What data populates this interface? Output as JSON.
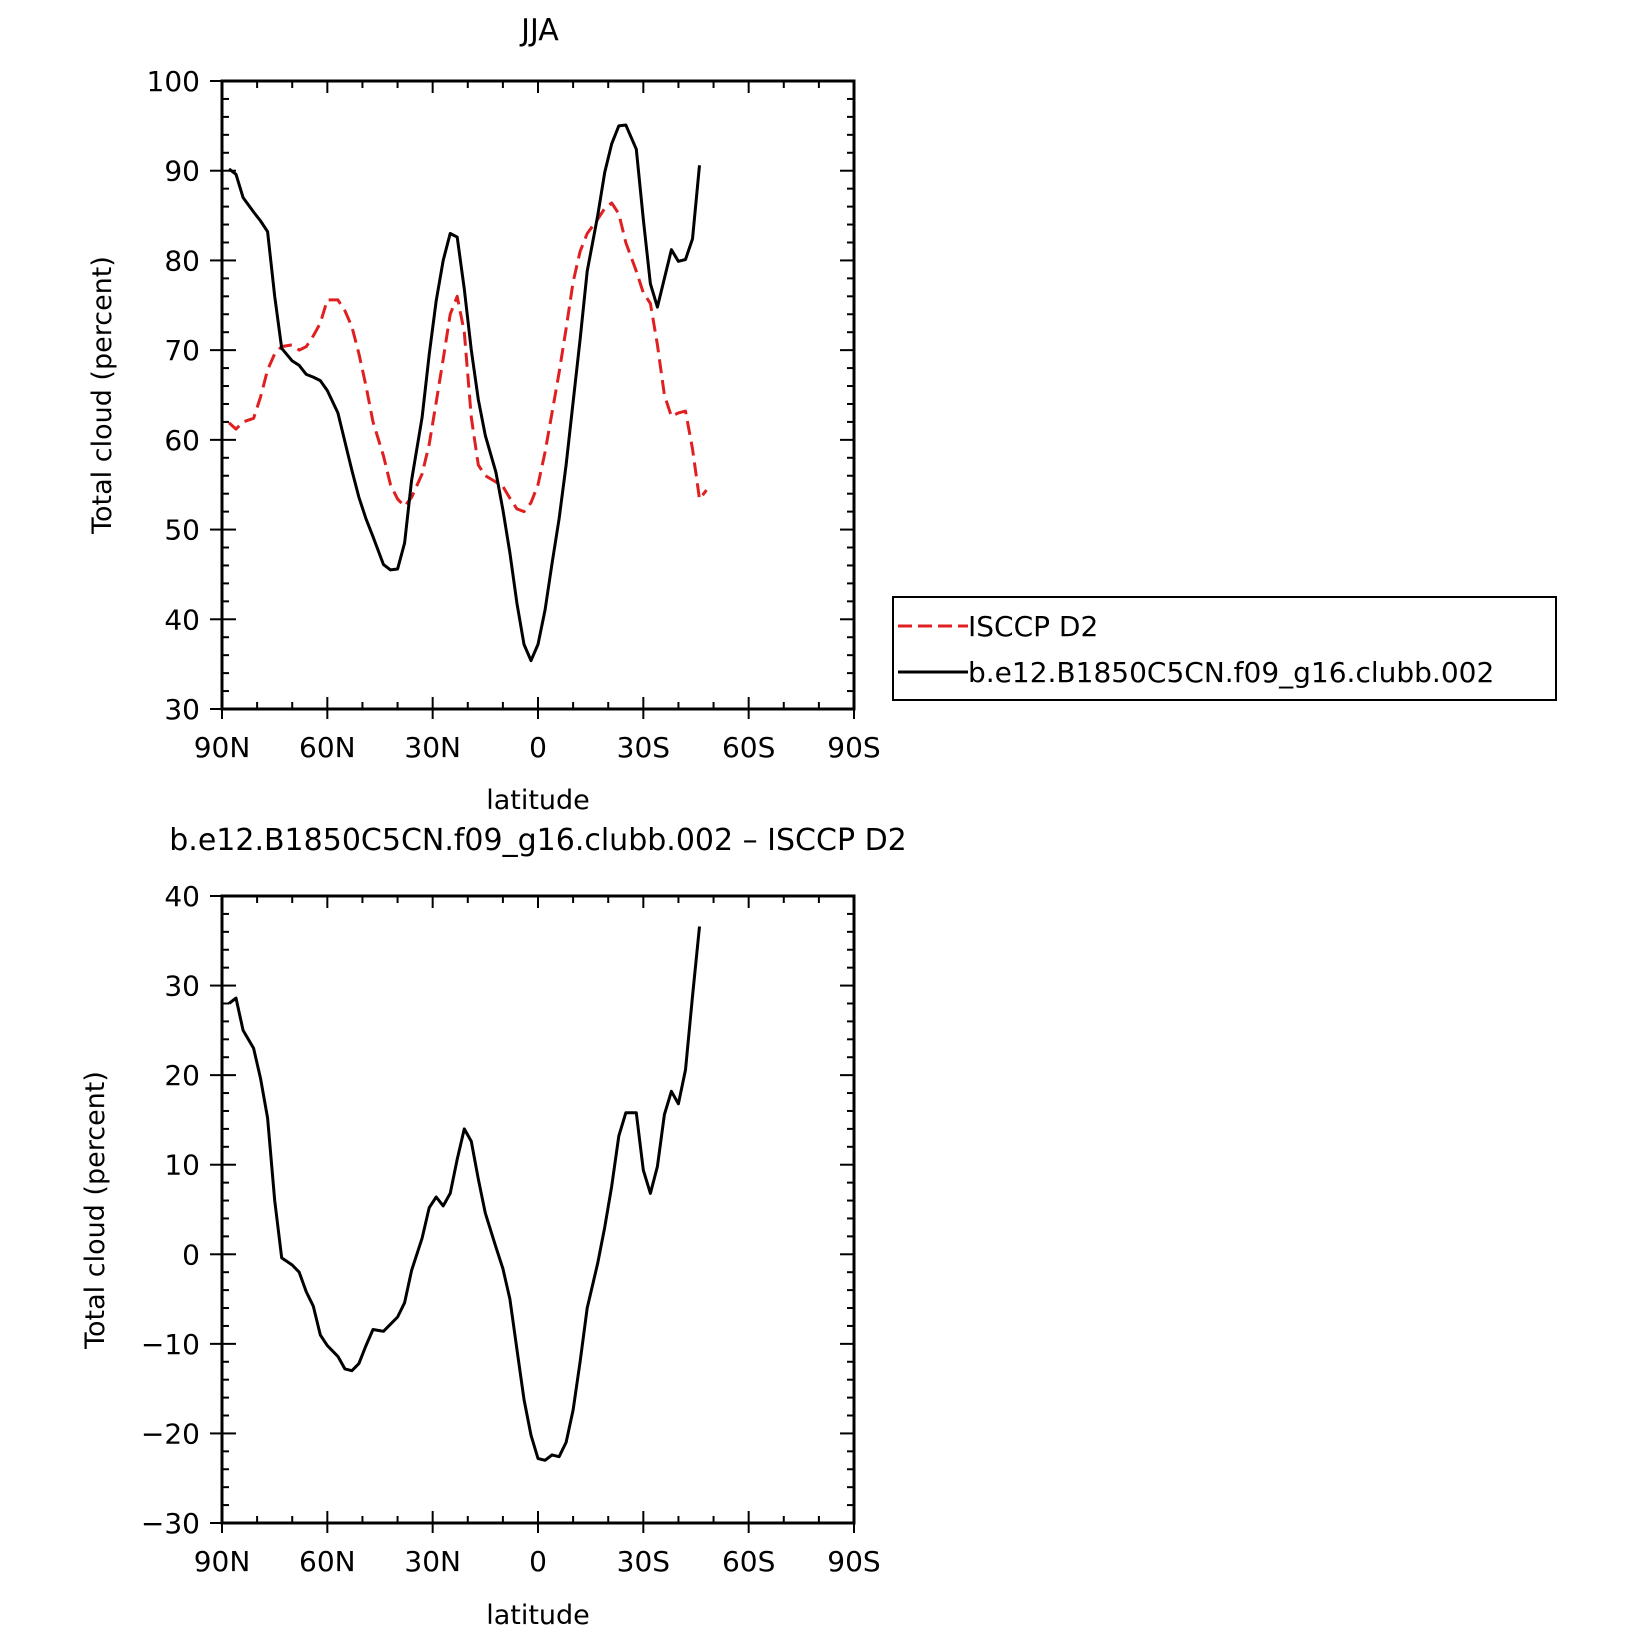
{
  "chart_data": [
    {
      "type": "line",
      "title": "JJA",
      "xlabel": "latitude",
      "ylabel": "Total cloud (percent)",
      "xlim": [
        90,
        -90
      ],
      "ylim": [
        30,
        100
      ],
      "x_ticks": [
        90,
        60,
        30,
        0,
        -30,
        -60,
        -90
      ],
      "x_tick_labels": [
        "90N",
        "60N",
        "30N",
        "0",
        "30S",
        "60S",
        "90S"
      ],
      "y_ticks": [
        30,
        40,
        50,
        60,
        70,
        80,
        90,
        100
      ],
      "y_tick_labels": [
        "30",
        "40",
        "50",
        "60",
        "70",
        "80",
        "90",
        "100"
      ],
      "legend": {
        "placement": "right",
        "entries": [
          "ISCCP D2",
          "b.e12.B1850C5CN.f09_g16.clubb.002"
        ]
      },
      "series": [
        {
          "name": "ISCCP D2",
          "color": "#e02020",
          "style": "dashed",
          "points": [
            [
              88,
              61.9
            ],
            [
              86,
              61.2
            ],
            [
              84,
              62.0
            ],
            [
              81,
              62.4
            ],
            [
              79,
              64.8
            ],
            [
              77,
              67.8
            ],
            [
              75,
              69.6
            ],
            [
              73,
              70.4
            ],
            [
              70,
              70.6
            ],
            [
              68,
              70.0
            ],
            [
              66,
              70.4
            ],
            [
              64,
              71.6
            ],
            [
              62,
              73.0
            ],
            [
              60,
              75.6
            ],
            [
              57,
              75.6
            ],
            [
              55,
              74.4
            ],
            [
              53,
              72.6
            ],
            [
              51,
              69.6
            ],
            [
              49,
              66.0
            ],
            [
              47,
              62.0
            ],
            [
              44,
              58.2
            ],
            [
              42,
              55.0
            ],
            [
              40,
              53.4
            ],
            [
              38,
              52.6
            ],
            [
              36,
              53.6
            ],
            [
              33,
              56.2
            ],
            [
              31,
              59.5
            ],
            [
              29,
              64.2
            ],
            [
              27,
              69.0
            ],
            [
              25,
              74.0
            ],
            [
              23,
              76.0
            ],
            [
              21,
              72.0
            ],
            [
              19,
              62.5
            ],
            [
              17,
              57.2
            ],
            [
              15,
              56.0
            ],
            [
              12,
              55.3
            ],
            [
              10,
              54.8
            ],
            [
              8,
              53.5
            ],
            [
              6,
              52.3
            ],
            [
              4,
              52.0
            ],
            [
              2,
              53.0
            ],
            [
              0,
              55.0
            ],
            [
              -2,
              58.6
            ],
            [
              -4,
              63.0
            ],
            [
              -6,
              67.5
            ],
            [
              -8,
              72.4
            ],
            [
              -10,
              77.6
            ],
            [
              -12,
              81.0
            ],
            [
              -14,
              83.0
            ],
            [
              -17,
              84.6
            ],
            [
              -19,
              85.8
            ],
            [
              -21,
              86.4
            ],
            [
              -23,
              85.2
            ],
            [
              -25,
              82.0
            ],
            [
              -28,
              78.8
            ],
            [
              -30,
              76.4
            ],
            [
              -32,
              75.2
            ],
            [
              -34,
              70.6
            ],
            [
              -36,
              65.0
            ],
            [
              -38,
              62.6
            ],
            [
              -40,
              63.0
            ],
            [
              -42,
              63.2
            ],
            [
              -44,
              59.0
            ],
            [
              -46,
              53.4
            ],
            [
              -48,
              54.4
            ]
          ]
        },
        {
          "name": "b.e12.B1850C5CN.f09_g16.clubb.002",
          "color": "#000000",
          "style": "solid",
          "points": [
            [
              88,
              90.2
            ],
            [
              86,
              89.6
            ],
            [
              84,
              87.0
            ],
            [
              81,
              85.4
            ],
            [
              79,
              84.4
            ],
            [
              77,
              83.2
            ],
            [
              75,
              76.0
            ],
            [
              73,
              70.2
            ],
            [
              70,
              68.8
            ],
            [
              68,
              68.3
            ],
            [
              66,
              67.3
            ],
            [
              64,
              67.0
            ],
            [
              62,
              66.6
            ],
            [
              60,
              65.5
            ],
            [
              57,
              63.0
            ],
            [
              55,
              59.8
            ],
            [
              53,
              56.6
            ],
            [
              51,
              53.6
            ],
            [
              49,
              51.2
            ],
            [
              47,
              49.2
            ],
            [
              44,
              46.1
            ],
            [
              42,
              45.5
            ],
            [
              40,
              45.6
            ],
            [
              38,
              48.5
            ],
            [
              36,
              55.5
            ],
            [
              33,
              62.5
            ],
            [
              31,
              69.5
            ],
            [
              29,
              75.5
            ],
            [
              27,
              80.0
            ],
            [
              25,
              83.0
            ],
            [
              23,
              82.6
            ],
            [
              21,
              76.8
            ],
            [
              19,
              70.0
            ],
            [
              17,
              64.5
            ],
            [
              15,
              60.5
            ],
            [
              12,
              56.4
            ],
            [
              10,
              52.2
            ],
            [
              8,
              47.4
            ],
            [
              6,
              41.8
            ],
            [
              4,
              37.2
            ],
            [
              2,
              35.4
            ],
            [
              0,
              37.2
            ],
            [
              -2,
              41.0
            ],
            [
              -4,
              46.2
            ],
            [
              -6,
              51.2
            ],
            [
              -8,
              57.2
            ],
            [
              -10,
              64.2
            ],
            [
              -12,
              71.2
            ],
            [
              -14,
              78.8
            ],
            [
              -17,
              85.0
            ],
            [
              -19,
              89.8
            ],
            [
              -21,
              93.0
            ],
            [
              -23,
              95.0
            ],
            [
              -25,
              95.1
            ],
            [
              -28,
              92.4
            ],
            [
              -30,
              84.6
            ],
            [
              -32,
              77.4
            ],
            [
              -34,
              74.8
            ],
            [
              -36,
              78.0
            ],
            [
              -38,
              81.2
            ],
            [
              -40,
              79.9
            ],
            [
              -42,
              80.1
            ],
            [
              -44,
              82.4
            ],
            [
              -46,
              90.6
            ]
          ]
        }
      ]
    },
    {
      "type": "line",
      "title": "b.e12.B1850C5CN.f09_g16.clubb.002 – ISCCP D2",
      "xlabel": "latitude",
      "ylabel": "Total cloud (percent)",
      "xlim": [
        90,
        -90
      ],
      "ylim": [
        -30,
        40
      ],
      "x_ticks": [
        90,
        60,
        30,
        0,
        -30,
        -60,
        -90
      ],
      "x_tick_labels": [
        "90N",
        "60N",
        "30N",
        "0",
        "30S",
        "60S",
        "90S"
      ],
      "y_ticks": [
        -30,
        -20,
        -10,
        0,
        10,
        20,
        30,
        40
      ],
      "y_tick_labels": [
        "−30",
        "−20",
        "−10",
        "0",
        "10",
        "20",
        "30",
        "40"
      ],
      "series": [
        {
          "color": "#000000",
          "style": "solid",
          "points": [
            [
              88,
              28.0
            ],
            [
              86,
              28.6
            ],
            [
              84,
              25.0
            ],
            [
              81,
              23.0
            ],
            [
              79,
              19.6
            ],
            [
              77,
              15.2
            ],
            [
              75,
              6.0
            ],
            [
              73,
              -0.4
            ],
            [
              70,
              -1.2
            ],
            [
              68,
              -2.0
            ],
            [
              66,
              -4.2
            ],
            [
              64,
              -5.8
            ],
            [
              62,
              -9.0
            ],
            [
              60,
              -10.2
            ],
            [
              57,
              -11.4
            ],
            [
              55,
              -12.8
            ],
            [
              53,
              -13.0
            ],
            [
              51,
              -12.2
            ],
            [
              49,
              -10.2
            ],
            [
              47,
              -8.4
            ],
            [
              44,
              -8.6
            ],
            [
              42,
              -7.8
            ],
            [
              40,
              -7.0
            ],
            [
              38,
              -5.4
            ],
            [
              36,
              -1.8
            ],
            [
              33,
              1.8
            ],
            [
              31,
              5.2
            ],
            [
              29,
              6.4
            ],
            [
              27,
              5.4
            ],
            [
              25,
              6.8
            ],
            [
              23,
              10.6
            ],
            [
              21,
              14.0
            ],
            [
              19,
              12.6
            ],
            [
              17,
              8.4
            ],
            [
              15,
              4.6
            ],
            [
              12,
              0.8
            ],
            [
              10,
              -1.6
            ],
            [
              8,
              -5.0
            ],
            [
              6,
              -10.6
            ],
            [
              4,
              -16.2
            ],
            [
              2,
              -20.2
            ],
            [
              0,
              -22.8
            ],
            [
              -2,
              -23.0
            ],
            [
              -4,
              -22.4
            ],
            [
              -6,
              -22.6
            ],
            [
              -8,
              -21.0
            ],
            [
              -10,
              -17.4
            ],
            [
              -12,
              -12.0
            ],
            [
              -14,
              -6.0
            ],
            [
              -17,
              -1.0
            ],
            [
              -19,
              3.0
            ],
            [
              -21,
              7.6
            ],
            [
              -23,
              13.2
            ],
            [
              -25,
              15.8
            ],
            [
              -28,
              15.8
            ],
            [
              -30,
              9.4
            ],
            [
              -32,
              6.8
            ],
            [
              -34,
              9.8
            ],
            [
              -36,
              15.6
            ],
            [
              -38,
              18.2
            ],
            [
              -40,
              16.8
            ],
            [
              -42,
              20.6
            ],
            [
              -44,
              28.8
            ],
            [
              -46,
              36.6
            ]
          ]
        }
      ]
    }
  ]
}
